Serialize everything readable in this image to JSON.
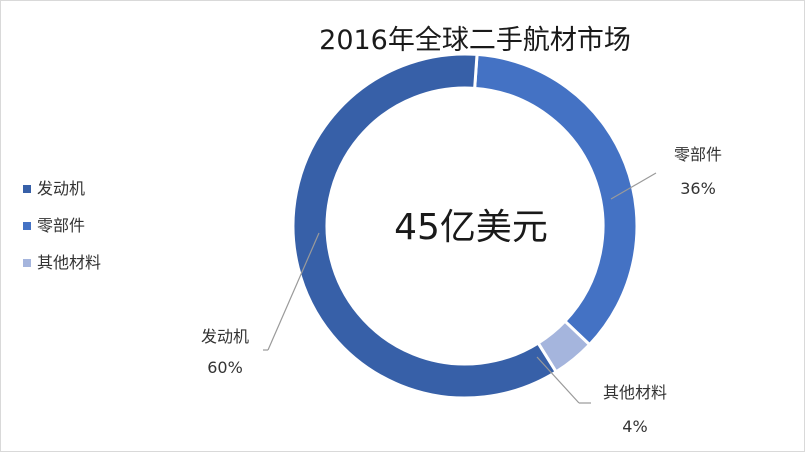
{
  "chart_data": {
    "type": "pie",
    "title": "2016年全球二手航材市场",
    "center_label": "45亿美元",
    "legend_position": "left",
    "categories": [
      "发动机",
      "零部件",
      "其他材料"
    ],
    "values": [
      60,
      36,
      4
    ],
    "value_labels": [
      "60%",
      "36%",
      "4%"
    ],
    "colors": [
      "#3760a8",
      "#4472c4",
      "#a5b5dd"
    ]
  }
}
